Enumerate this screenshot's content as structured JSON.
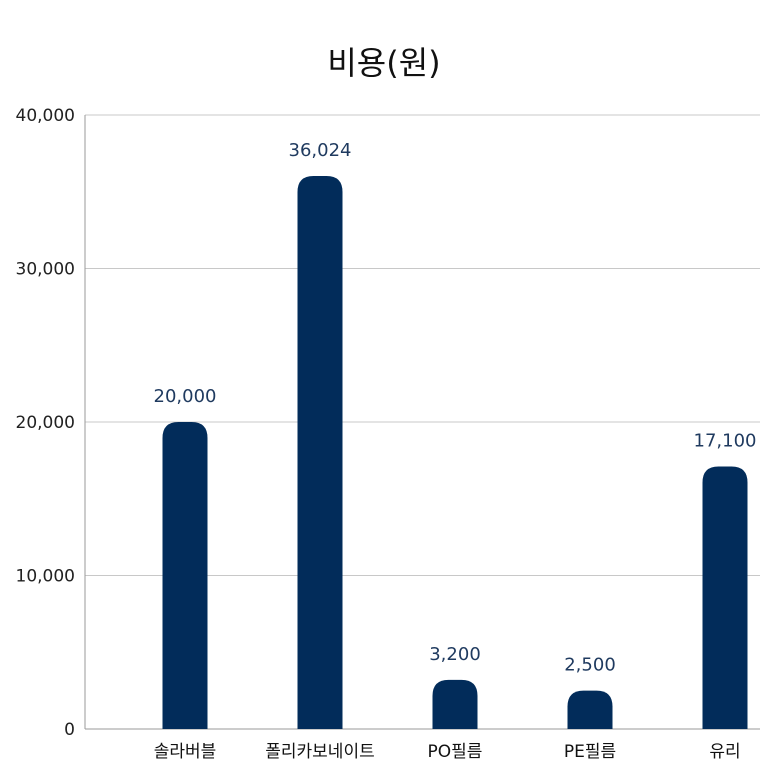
{
  "chart_data": {
    "type": "bar",
    "title": "비용(원)",
    "categories": [
      "솔라버블",
      "폴리카보네이트",
      "PO필름",
      "PE필름",
      "유리"
    ],
    "values": [
      20000,
      36024,
      3200,
      2500,
      17100
    ],
    "data_labels": [
      "20,000",
      "36,024",
      "3,200",
      "2,500",
      "17,100"
    ],
    "ylim": [
      0,
      40000
    ],
    "yticks": [
      0,
      10000,
      20000,
      30000,
      40000
    ],
    "ytick_labels": [
      "0",
      "10,000",
      "20,000",
      "30,000",
      "40,000"
    ],
    "xlabel": "",
    "ylabel": "",
    "grid": true,
    "bar_color": "#022c5a",
    "label_color": "#1f3a5f",
    "grid_color": "#c8c8c8"
  }
}
